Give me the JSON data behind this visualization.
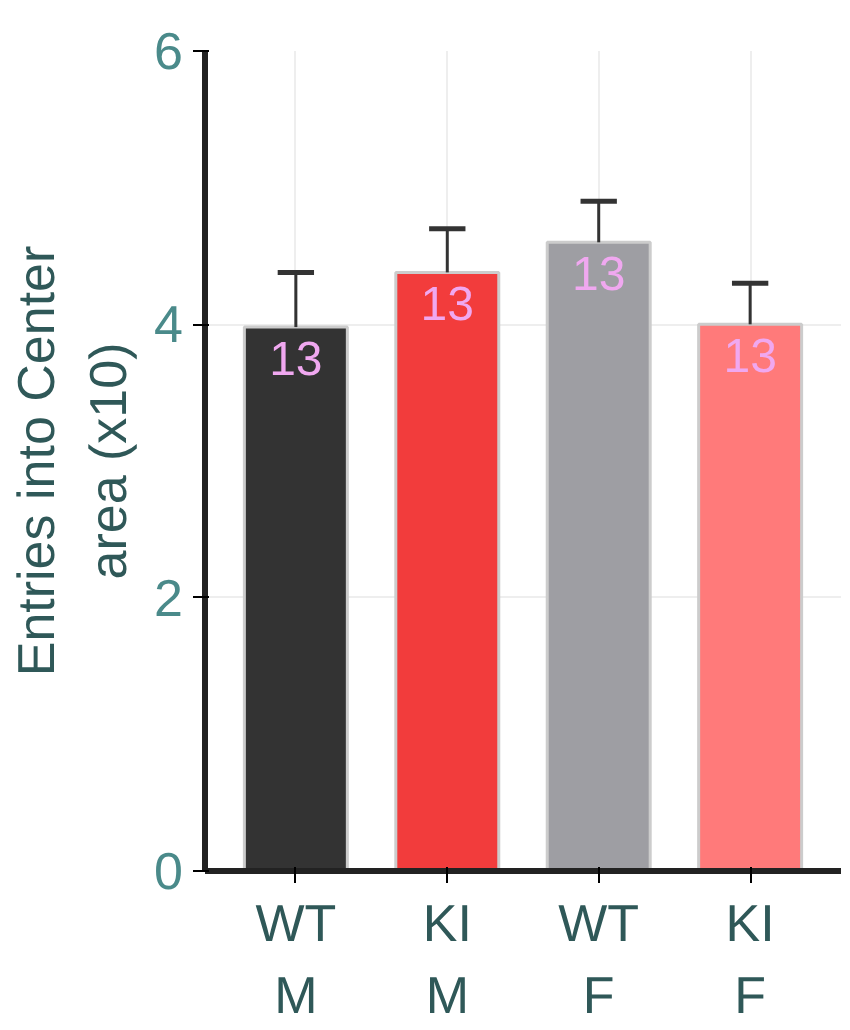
{
  "chart_data": {
    "type": "bar",
    "ylabel": "Entries into Center\narea (x10)",
    "categories": [
      "WT\nM",
      "KI\nM",
      "WT\nF",
      "KI\nF"
    ],
    "values": [
      3.98,
      4.38,
      4.6,
      4.0
    ],
    "colors": [
      "#333333",
      "#f23c3c",
      "#9e9ea3",
      "#ff7a7a"
    ],
    "errors": [
      [
        3.98,
        4.38
      ],
      [
        4.38,
        4.7
      ],
      [
        4.6,
        4.9
      ],
      [
        4.0,
        4.3
      ]
    ],
    "annotations": [
      "13",
      "13",
      "13",
      "13"
    ],
    "ylim": [
      0,
      6
    ],
    "yticks": [
      0,
      2,
      4,
      6
    ],
    "grid": true
  }
}
